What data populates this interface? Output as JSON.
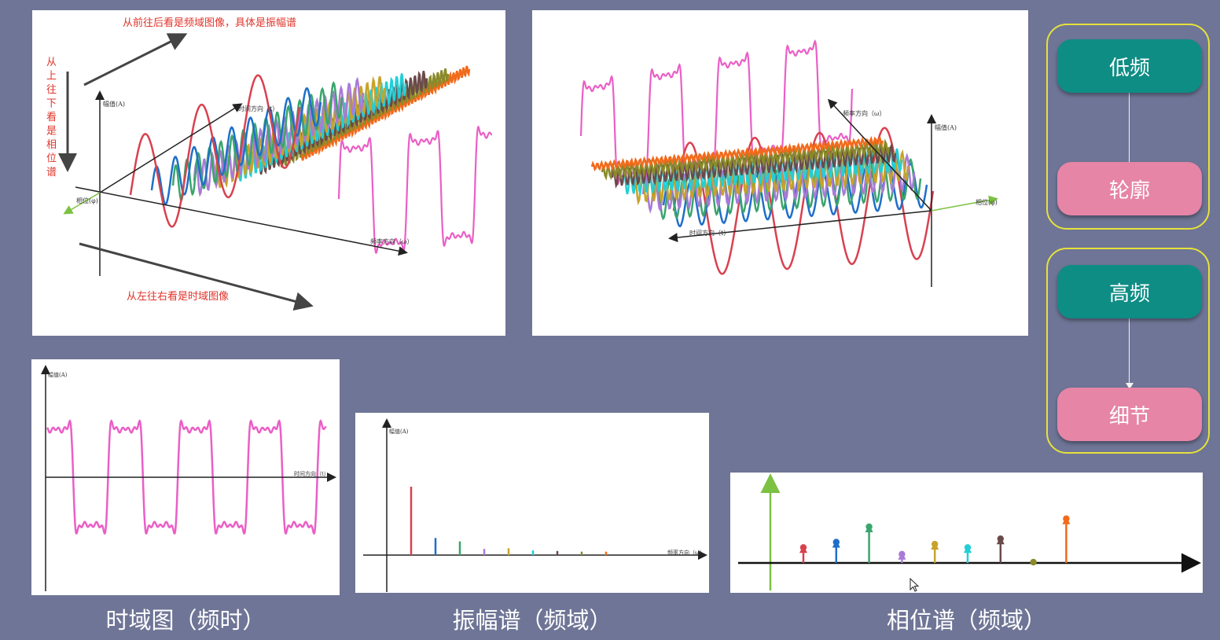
{
  "panel1": {
    "note_top": "从前往后看是频域图像，具体是振幅谱",
    "note_left": "从上往下看是相位谱",
    "note_bottom": "从左往右看是时域图像",
    "axis_amplitude": "幅值(A)",
    "axis_phase": "相位(φ)",
    "axis_frequency": "频率方向（ω）",
    "axis_time": "时间方向（t）"
  },
  "panel2": {
    "axis_amplitude": "幅值(A)",
    "axis_frequency": "频率方向（ω）",
    "axis_phase": "相位(φ)",
    "axis_time": "时间方向（t）"
  },
  "panel3": {
    "axis_amplitude": "幅值(A)",
    "axis_time": "时间方向（t）"
  },
  "panel4": {
    "axis_amplitude": "幅值(A)",
    "axis_frequency": "频率方向（ω）"
  },
  "captions": {
    "time_domain": "时域图（频时）",
    "amplitude_spectrum": "振幅谱（频域）",
    "phase_spectrum": "相位谱（频域）"
  },
  "legend": {
    "group1_top": "低频",
    "group1_bottom": "轮廓",
    "group2_top": "高频",
    "group2_bottom": "细节"
  },
  "colors": {
    "background": "#6f7596",
    "signal": "#ea5fc6",
    "red": "#d9414f",
    "blue": "#1f6fc9",
    "green": "#3aa56d",
    "purple": "#a97ad8",
    "gold": "#c7a32a",
    "cyan": "#22cfd6",
    "brown": "#6b4a4a",
    "olive": "#8a8a2a",
    "orange": "#f26a1b",
    "teal_pill": "#0e8d85",
    "pink_pill": "#e685a6",
    "group_border": "#e6e23a"
  }
}
